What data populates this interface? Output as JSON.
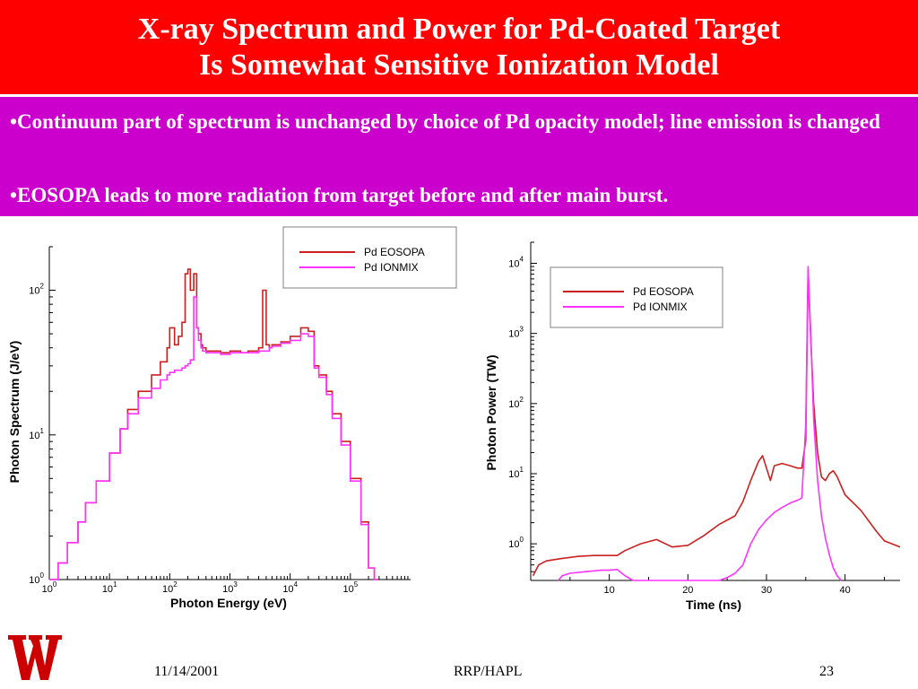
{
  "slide": {
    "title_line1": "X-ray Spectrum and Power for Pd-Coated Target",
    "title_line2": "Is Somewhat Sensitive Ionization Model",
    "bullets": [
      "•Continuum part of spectrum is unchanged by choice of Pd opacity model; line emission is changed",
      "•EOSOPA leads to more radiation from target before and after main burst."
    ],
    "footer": {
      "date": "11/14/2001",
      "center": "RRP/HAPL",
      "page": "23"
    },
    "colors": {
      "title_bg": "#ff0000",
      "bullet_bg": "#cc00cc",
      "eosopa": "#cc2020",
      "ionmix": "#ff33ff"
    }
  },
  "chart_data": [
    {
      "type": "line",
      "step": true,
      "xscale": "log",
      "yscale": "log",
      "xlabel": "Photon Energy (eV)",
      "ylabel": "Photon Spectrum (J/eV)",
      "xlim": [
        1,
        1000000
      ],
      "ylim": [
        1,
        200
      ],
      "xticks": [
        {
          "base": "10",
          "exp": "0",
          "value": 1
        },
        {
          "base": "10",
          "exp": "1",
          "value": 10
        },
        {
          "base": "10",
          "exp": "2",
          "value": 100
        },
        {
          "base": "10",
          "exp": "3",
          "value": 1000
        },
        {
          "base": "10",
          "exp": "4",
          "value": 10000
        },
        {
          "base": "10",
          "exp": "5",
          "value": 100000
        }
      ],
      "yticks": [
        {
          "base": "10",
          "exp": "0",
          "value": 1
        },
        {
          "base": "10",
          "exp": "1",
          "value": 10
        },
        {
          "base": "10",
          "exp": "2",
          "value": 100
        }
      ],
      "legend": "top-right",
      "series": [
        {
          "name": "Pd EOSOPA",
          "x": [
            1,
            1.4,
            2,
            3,
            4,
            6,
            10,
            15,
            20,
            30,
            50,
            70,
            90,
            100,
            120,
            140,
            160,
            180,
            200,
            220,
            250,
            280,
            300,
            330,
            350,
            400,
            500,
            700,
            1000,
            1500,
            2000,
            3000,
            3500,
            4000,
            4500,
            5000,
            7000,
            10000,
            15000,
            20000,
            25000,
            30000,
            40000,
            50000,
            70000,
            100000,
            150000,
            200000,
            250000
          ],
          "values": [
            1.0,
            1.3,
            1.8,
            2.5,
            3.4,
            4.8,
            7.5,
            11,
            15,
            20,
            26,
            32,
            40,
            55,
            42,
            48,
            60,
            130,
            140,
            100,
            130,
            55,
            50,
            42,
            40,
            38,
            38,
            37,
            38,
            37,
            38,
            40,
            100,
            42,
            40,
            42,
            44,
            48,
            55,
            52,
            30,
            26,
            20,
            14,
            9,
            5,
            2.5,
            1.2,
            1.0
          ]
        },
        {
          "name": "Pd IONMIX",
          "x": [
            1,
            1.4,
            2,
            3,
            4,
            6,
            10,
            15,
            20,
            30,
            50,
            70,
            90,
            100,
            120,
            140,
            160,
            180,
            200,
            220,
            250,
            280,
            300,
            330,
            350,
            400,
            500,
            700,
            1000,
            1500,
            2000,
            3000,
            3500,
            4000,
            4500,
            5000,
            7000,
            10000,
            15000,
            20000,
            25000,
            30000,
            40000,
            50000,
            70000,
            100000,
            150000,
            200000,
            250000
          ],
          "values": [
            1.0,
            1.3,
            1.8,
            2.5,
            3.4,
            4.8,
            7.5,
            11,
            14,
            18,
            21,
            24,
            26,
            27,
            28,
            28,
            29,
            30,
            31,
            33,
            90,
            55,
            45,
            40,
            38,
            37,
            37,
            36,
            37,
            37,
            37,
            38,
            38,
            38,
            40,
            41,
            43,
            45,
            50,
            48,
            29,
            25,
            19,
            13,
            8.5,
            4.8,
            2.4,
            1.2,
            1.0
          ]
        }
      ]
    },
    {
      "type": "line",
      "xscale": "linear",
      "yscale": "log",
      "xlabel": "Time (ns)",
      "ylabel": "Photon Power (TW)",
      "xlim": [
        0,
        47
      ],
      "ylim": [
        0.3,
        20000
      ],
      "xticks": [
        10,
        20,
        30,
        40
      ],
      "yticks": [
        {
          "base": "10",
          "exp": "0",
          "value": 1
        },
        {
          "base": "10",
          "exp": "1",
          "value": 10
        },
        {
          "base": "10",
          "exp": "2",
          "value": 100
        },
        {
          "base": "10",
          "exp": "3",
          "value": 1000
        },
        {
          "base": "10",
          "exp": "4",
          "value": 10000
        }
      ],
      "legend": "top-left",
      "series": [
        {
          "name": "Pd EOSOPA",
          "x": [
            0.3,
            1,
            2,
            4,
            6,
            8,
            10,
            11,
            12,
            14,
            16,
            18,
            20,
            22,
            24,
            26,
            27,
            28,
            29,
            29.5,
            30,
            30.5,
            31,
            32,
            33,
            34,
            34.5,
            35,
            35.3,
            35.6,
            36,
            36.5,
            37,
            37.5,
            38,
            38.5,
            39,
            40,
            42,
            44,
            45,
            47
          ],
          "values": [
            0.35,
            0.5,
            0.57,
            0.62,
            0.66,
            0.68,
            0.68,
            0.68,
            0.8,
            1.0,
            1.15,
            0.9,
            0.95,
            1.3,
            1.9,
            2.5,
            4,
            8,
            15,
            18,
            12,
            8,
            13,
            14,
            13,
            12,
            12,
            30,
            8000,
            1000,
            100,
            20,
            9,
            8,
            10,
            11,
            9,
            5,
            3,
            1.5,
            1.1,
            0.9
          ]
        },
        {
          "name": "Pd IONMIX",
          "x": [
            3.5,
            4,
            5,
            7,
            9,
            10,
            11,
            12,
            13,
            15,
            18,
            20,
            22,
            24,
            25,
            26,
            27,
            28,
            29,
            30,
            31,
            32,
            33,
            34,
            34.5,
            35,
            35.3,
            35.6,
            36,
            36.5,
            37,
            37.5,
            38,
            38.5,
            39,
            39.5
          ],
          "values": [
            0.3,
            0.35,
            0.38,
            0.4,
            0.42,
            0.42,
            0.43,
            0.35,
            0.3,
            0.28,
            0.28,
            0.28,
            0.29,
            0.3,
            0.33,
            0.38,
            0.5,
            1.0,
            1.6,
            2.2,
            2.8,
            3.3,
            3.8,
            4.2,
            4.5,
            50,
            9000,
            1200,
            60,
            8,
            2.5,
            1.2,
            0.7,
            0.45,
            0.35,
            0.28
          ]
        }
      ]
    }
  ]
}
